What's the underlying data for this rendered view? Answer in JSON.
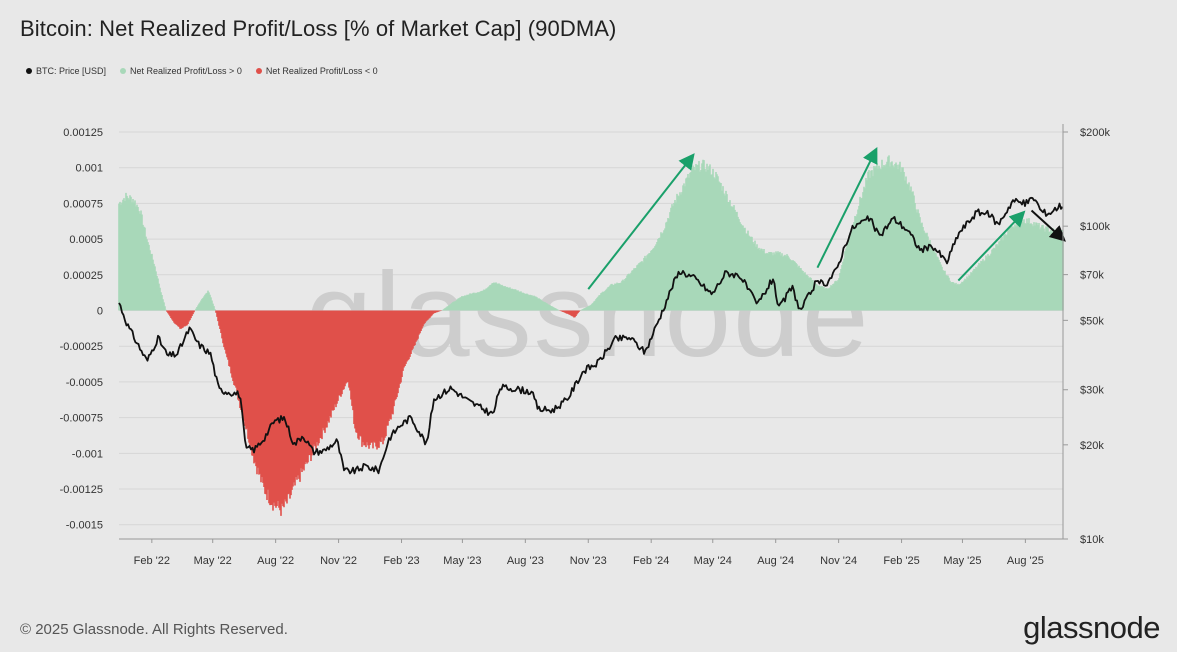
{
  "title": "Bitcoin: Net Realized Profit/Loss [% of Market Cap] (90DMA)",
  "legend": [
    {
      "label": "BTC: Price [USD]",
      "color": "#111111"
    },
    {
      "label": "Net Realized Profit/Loss > 0",
      "color": "#a8d8b9"
    },
    {
      "label": "Net Realized Profit/Loss < 0",
      "color": "#e0504a"
    }
  ],
  "footer": "© 2025 Glassnode. All Rights Reserved.",
  "brand": "glassnode",
  "watermark": "glassnode",
  "chart_data": {
    "type": "area",
    "x_tick_labels": [
      "Feb '22",
      "May '22",
      "Aug '22",
      "Nov '22",
      "Feb '23",
      "May '23",
      "Aug '23",
      "Nov '23",
      "Feb '24",
      "May '24",
      "Aug '24",
      "Nov '24",
      "Feb '25",
      "May '25",
      "Aug '25"
    ],
    "y_left_ticks": [
      "0.00125",
      "0.001",
      "0.00075",
      "0.0005",
      "0.00025",
      "0",
      "-0.00025",
      "-0.0005",
      "-0.00075",
      "-0.001",
      "-0.00125",
      "-0.0015"
    ],
    "y_left_values": [
      0.00125,
      0.001,
      0.00075,
      0.0005,
      0.00025,
      0,
      -0.00025,
      -0.0005,
      -0.00075,
      -0.001,
      -0.00125,
      -0.0015
    ],
    "y_right_ticks": [
      "$200k",
      "$100k",
      "$70k",
      "$50k",
      "$30k",
      "$20k",
      "$10k"
    ],
    "y_right_values": [
      200000,
      100000,
      70000,
      50000,
      30000,
      20000,
      10000
    ],
    "right_axis_scale": "log",
    "ylim_left": [
      -0.0016,
      0.00125
    ],
    "ylim_right": [
      10000,
      200000
    ],
    "x_range": [
      "2021-12-15",
      "2025-09-25"
    ],
    "series": [
      {
        "name": "Net Realized Profit/Loss",
        "positive_color": "#a8d8b9",
        "negative_color": "#e0504a",
        "points": [
          [
            "2021-12-15",
            0.00075
          ],
          [
            "2021-12-25",
            0.0008
          ],
          [
            "2022-01-05",
            0.00078
          ],
          [
            "2022-01-15",
            0.0007
          ],
          [
            "2022-01-25",
            0.0005
          ],
          [
            "2022-02-05",
            0.00032
          ],
          [
            "2022-02-15",
            0.00012
          ],
          [
            "2022-02-22",
            0.0
          ],
          [
            "2022-03-05",
            -8e-05
          ],
          [
            "2022-03-15",
            -0.00013
          ],
          [
            "2022-03-25",
            -0.0001
          ],
          [
            "2022-04-05",
            0.0
          ],
          [
            "2022-04-15",
            8e-05
          ],
          [
            "2022-04-25",
            0.00014
          ],
          [
            "2022-05-05",
            0.0
          ],
          [
            "2022-05-20",
            -0.0003
          ],
          [
            "2022-06-01",
            -0.0005
          ],
          [
            "2022-06-15",
            -0.00075
          ],
          [
            "2022-07-01",
            -0.00105
          ],
          [
            "2022-07-15",
            -0.00125
          ],
          [
            "2022-07-28",
            -0.00135
          ],
          [
            "2022-08-10",
            -0.0014
          ],
          [
            "2022-08-20",
            -0.00133
          ],
          [
            "2022-09-01",
            -0.0012
          ],
          [
            "2022-09-15",
            -0.00108
          ],
          [
            "2022-10-01",
            -0.00093
          ],
          [
            "2022-10-15",
            -0.0008
          ],
          [
            "2022-11-01",
            -0.00062
          ],
          [
            "2022-11-15",
            -0.00048
          ],
          [
            "2022-11-25",
            -0.00082
          ],
          [
            "2022-12-05",
            -0.00092
          ],
          [
            "2022-12-20",
            -0.00096
          ],
          [
            "2023-01-05",
            -0.00092
          ],
          [
            "2023-01-20",
            -0.0007
          ],
          [
            "2023-02-05",
            -0.0004
          ],
          [
            "2023-02-20",
            -0.00025
          ],
          [
            "2023-03-05",
            -0.0001
          ],
          [
            "2023-03-20",
            -2e-05
          ],
          [
            "2023-04-01",
            0.0
          ],
          [
            "2023-04-15",
            5e-05
          ],
          [
            "2023-05-01",
            0.0001
          ],
          [
            "2023-05-15",
            0.00012
          ],
          [
            "2023-06-01",
            0.00014
          ],
          [
            "2023-06-15",
            0.0002
          ],
          [
            "2023-07-01",
            0.00017
          ],
          [
            "2023-07-15",
            0.00015
          ],
          [
            "2023-08-01",
            0.00012
          ],
          [
            "2023-08-15",
            0.0001
          ],
          [
            "2023-09-01",
            5e-05
          ],
          [
            "2023-09-20",
            0.0
          ],
          [
            "2023-10-05",
            -3e-05
          ],
          [
            "2023-10-12",
            -5e-05
          ],
          [
            "2023-10-20",
            0.0
          ],
          [
            "2023-11-05",
            4e-05
          ],
          [
            "2023-11-20",
            0.00012
          ],
          [
            "2023-12-05",
            0.00018
          ],
          [
            "2023-12-20",
            0.0002
          ],
          [
            "2024-01-05",
            0.00028
          ],
          [
            "2024-01-20",
            0.00035
          ],
          [
            "2024-02-05",
            0.00045
          ],
          [
            "2024-02-20",
            0.00058
          ],
          [
            "2024-03-05",
            0.00075
          ],
          [
            "2024-03-20",
            0.00088
          ],
          [
            "2024-04-01",
            0.00098
          ],
          [
            "2024-04-15",
            0.00102
          ],
          [
            "2024-04-25",
            0.001
          ],
          [
            "2024-05-05",
            0.00095
          ],
          [
            "2024-05-20",
            0.00082
          ],
          [
            "2024-06-05",
            0.00068
          ],
          [
            "2024-06-20",
            0.00055
          ],
          [
            "2024-07-05",
            0.00045
          ],
          [
            "2024-07-20",
            0.0004
          ],
          [
            "2024-08-05",
            0.0004
          ],
          [
            "2024-08-20",
            0.00038
          ],
          [
            "2024-09-01",
            0.00032
          ],
          [
            "2024-09-15",
            0.00025
          ],
          [
            "2024-10-01",
            0.00018
          ],
          [
            "2024-10-15",
            0.00015
          ],
          [
            "2024-11-01",
            0.00022
          ],
          [
            "2024-11-15",
            0.0005
          ],
          [
            "2024-12-01",
            0.00075
          ],
          [
            "2024-12-15",
            0.00095
          ],
          [
            "2025-01-01",
            0.00102
          ],
          [
            "2025-01-15",
            0.00105
          ],
          [
            "2025-02-01",
            0.001
          ],
          [
            "2025-02-15",
            0.00085
          ],
          [
            "2025-03-01",
            0.00062
          ],
          [
            "2025-03-15",
            0.00048
          ],
          [
            "2025-04-01",
            0.0003
          ],
          [
            "2025-04-15",
            0.0002
          ],
          [
            "2025-04-25",
            0.00018
          ],
          [
            "2025-05-10",
            0.00024
          ],
          [
            "2025-05-25",
            0.00032
          ],
          [
            "2025-06-10",
            0.0004
          ],
          [
            "2025-06-25",
            0.00048
          ],
          [
            "2025-07-10",
            0.00058
          ],
          [
            "2025-07-25",
            0.00064
          ],
          [
            "2025-08-10",
            0.00062
          ],
          [
            "2025-08-25",
            0.00058
          ],
          [
            "2025-09-10",
            0.00056
          ],
          [
            "2025-09-25",
            0.00055
          ]
        ]
      },
      {
        "name": "BTC: Price [USD]",
        "color": "#111111",
        "points": [
          [
            "2021-12-15",
            57000
          ],
          [
            "2021-12-28",
            48000
          ],
          [
            "2022-01-10",
            42500
          ],
          [
            "2022-01-25",
            37000
          ],
          [
            "2022-02-10",
            44000
          ],
          [
            "2022-02-24",
            38500
          ],
          [
            "2022-03-10",
            39000
          ],
          [
            "2022-03-28",
            47000
          ],
          [
            "2022-04-10",
            42000
          ],
          [
            "2022-04-28",
            39000
          ],
          [
            "2022-05-10",
            30000
          ],
          [
            "2022-05-25",
            29500
          ],
          [
            "2022-06-10",
            29000
          ],
          [
            "2022-06-18",
            19500
          ],
          [
            "2022-07-01",
            19300
          ],
          [
            "2022-07-15",
            21000
          ],
          [
            "2022-07-30",
            23800
          ],
          [
            "2022-08-14",
            24400
          ],
          [
            "2022-08-28",
            20000
          ],
          [
            "2022-09-10",
            21500
          ],
          [
            "2022-09-25",
            19000
          ],
          [
            "2022-10-10",
            19100
          ],
          [
            "2022-10-30",
            20600
          ],
          [
            "2022-11-09",
            16500
          ],
          [
            "2022-11-25",
            16500
          ],
          [
            "2022-12-10",
            17100
          ],
          [
            "2022-12-30",
            16550
          ],
          [
            "2023-01-14",
            21000
          ],
          [
            "2023-01-30",
            23100
          ],
          [
            "2023-02-15",
            24500
          ],
          [
            "2023-03-10",
            20000
          ],
          [
            "2023-03-20",
            28000
          ],
          [
            "2023-04-14",
            30400
          ],
          [
            "2023-05-10",
            27600
          ],
          [
            "2023-06-15",
            25000
          ],
          [
            "2023-06-25",
            30500
          ],
          [
            "2023-07-15",
            30300
          ],
          [
            "2023-08-10",
            29500
          ],
          [
            "2023-08-20",
            26000
          ],
          [
            "2023-09-10",
            25800
          ],
          [
            "2023-10-01",
            27900
          ],
          [
            "2023-10-25",
            34500
          ],
          [
            "2023-11-15",
            36500
          ],
          [
            "2023-12-10",
            43500
          ],
          [
            "2024-01-01",
            44000
          ],
          [
            "2024-01-23",
            39500
          ],
          [
            "2024-02-15",
            52000
          ],
          [
            "2024-03-05",
            66000
          ],
          [
            "2024-03-14",
            72000
          ],
          [
            "2024-04-05",
            68000
          ],
          [
            "2024-04-30",
            60500
          ],
          [
            "2024-05-20",
            71000
          ],
          [
            "2024-06-10",
            69500
          ],
          [
            "2024-07-05",
            56000
          ],
          [
            "2024-07-29",
            68500
          ],
          [
            "2024-08-05",
            54000
          ],
          [
            "2024-08-25",
            64000
          ],
          [
            "2024-09-06",
            53500
          ],
          [
            "2024-09-28",
            65500
          ],
          [
            "2024-10-15",
            66000
          ],
          [
            "2024-10-29",
            72500
          ],
          [
            "2024-11-12",
            89000
          ],
          [
            "2024-11-22",
            99000
          ],
          [
            "2024-12-05",
            103000
          ],
          [
            "2024-12-17",
            106000
          ],
          [
            "2024-12-30",
            92500
          ],
          [
            "2025-01-20",
            106000
          ],
          [
            "2025-02-10",
            97000
          ],
          [
            "2025-02-28",
            84000
          ],
          [
            "2025-03-20",
            86000
          ],
          [
            "2025-04-08",
            76500
          ],
          [
            "2025-04-25",
            94500
          ],
          [
            "2025-05-22",
            111000
          ],
          [
            "2025-06-10",
            109000
          ],
          [
            "2025-06-22",
            101000
          ],
          [
            "2025-07-14",
            121000
          ],
          [
            "2025-07-30",
            118000
          ],
          [
            "2025-08-14",
            123000
          ],
          [
            "2025-08-25",
            111000
          ],
          [
            "2025-09-05",
            110000
          ],
          [
            "2025-09-20",
            116000
          ]
        ]
      }
    ],
    "annotation_arrows": [
      {
        "color": "#1aa06a",
        "from": [
          "2023-11-01",
          0.00015
        ],
        "to": [
          "2024-04-01",
          0.00108
        ]
      },
      {
        "color": "#1aa06a",
        "from": [
          "2024-10-01",
          0.0003
        ],
        "to": [
          "2024-12-25",
          0.00112
        ]
      },
      {
        "color": "#1aa06a",
        "from": [
          "2025-04-25",
          0.00021
        ],
        "to": [
          "2025-07-28",
          0.00068
        ]
      },
      {
        "color": "#111111",
        "from": [
          "2025-08-10",
          0.0007
        ],
        "to": [
          "2025-09-25",
          0.0005
        ]
      }
    ]
  }
}
